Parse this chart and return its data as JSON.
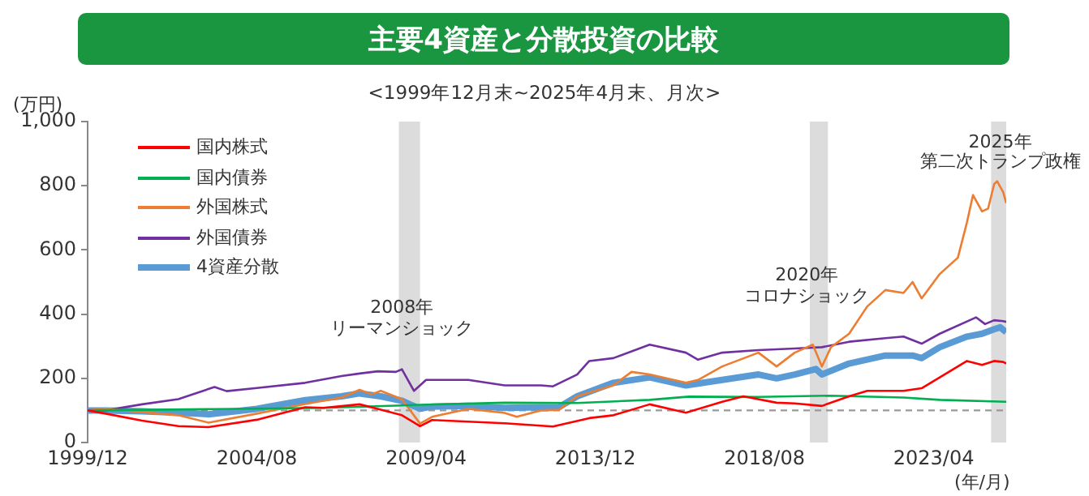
{
  "chart_data": {
    "type": "line",
    "title": "主要4資産と分散投資の比較",
    "subtitle": "<1999年12月末~2025年4月末、月次>",
    "ylabel": "(万円)",
    "xlabel": "(年/月)",
    "xlim": [
      "1999-12",
      "2025-04"
    ],
    "xticks": [
      {
        "value": "1999-12",
        "label": "1999/12"
      },
      {
        "value": "2004-08",
        "label": "2004/08"
      },
      {
        "value": "2009-04",
        "label": "2009/04"
      },
      {
        "value": "2013-12",
        "label": "2013/12"
      },
      {
        "value": "2018-08",
        "label": "2018/08"
      },
      {
        "value": "2023-04",
        "label": "2023/04"
      }
    ],
    "ylim": [
      0,
      1000
    ],
    "yticks": [
      0,
      200,
      400,
      600,
      800,
      {
        "value": 1000,
        "label": "1,000"
      }
    ],
    "grid": false,
    "legend": "top left",
    "series": [
      {
        "name": "国内株式",
        "color": "#ff0000",
        "x": [
          "1999-12",
          "2000-06",
          "2001-06",
          "2002-06",
          "2003-04",
          "2004-08",
          "2005-12",
          "2006-06",
          "2007-06",
          "2007-12",
          "2008-08",
          "2009-02",
          "2009-06",
          "2010-06",
          "2011-06",
          "2012-10",
          "2013-10",
          "2014-06",
          "2015-06",
          "2016-06",
          "2017-06",
          "2018-01",
          "2018-12",
          "2019-06",
          "2020-03",
          "2020-12",
          "2021-06",
          "2022-06",
          "2022-12",
          "2023-06",
          "2024-03",
          "2024-08",
          "2024-12",
          "2025-03",
          "2025-04"
        ],
        "values": [
          100,
          90,
          68,
          51,
          48,
          71,
          110,
          108,
          119,
          105,
          85,
          51,
          70,
          65,
          60,
          50,
          76,
          85,
          119,
          93,
          127,
          144,
          124,
          122,
          114,
          144,
          161,
          161,
          169,
          203,
          254,
          242,
          254,
          251,
          246
        ]
      },
      {
        "name": "国内債券",
        "color": "#00b050",
        "x": [
          "1999-12",
          "2003-06",
          "2006-06",
          "2008-06",
          "2009-04",
          "2011-06",
          "2013-06",
          "2015-06",
          "2016-07",
          "2018-06",
          "2020-06",
          "2022-06",
          "2023-06",
          "2025-04"
        ],
        "values": [
          100,
          104,
          108,
          115,
          118,
          124,
          123,
          133,
          143,
          142,
          146,
          140,
          133,
          127
        ]
      },
      {
        "name": "外国株式",
        "color": "#ed7d31",
        "x": [
          "1999-12",
          "2000-06",
          "2001-06",
          "2002-06",
          "2003-04",
          "2004-08",
          "2005-12",
          "2006-12",
          "2007-06",
          "2007-10",
          "2008-01",
          "2008-08",
          "2009-02",
          "2009-06",
          "2010-06",
          "2011-06",
          "2011-10",
          "2012-06",
          "2012-12",
          "2013-06",
          "2014-06",
          "2014-12",
          "2015-06",
          "2016-06",
          "2016-10",
          "2017-06",
          "2018-06",
          "2018-12",
          "2019-06",
          "2019-12",
          "2020-03",
          "2020-06",
          "2020-12",
          "2021-06",
          "2021-12",
          "2022-06",
          "2022-09",
          "2022-12",
          "2023-06",
          "2023-12",
          "2024-03",
          "2024-05",
          "2024-08",
          "2024-10",
          "2024-12",
          "2025-01",
          "2025-03",
          "2025-04"
        ],
        "values": [
          100,
          105,
          95,
          85,
          62,
          90,
          120,
          140,
          164,
          150,
          161,
          135,
          59,
          80,
          105,
          92,
          80,
          100,
          102,
          144,
          178,
          220,
          212,
          186,
          195,
          237,
          280,
          237,
          280,
          305,
          237,
          297,
          339,
          424,
          475,
          466,
          500,
          449,
          525,
          576,
          686,
          771,
          720,
          729,
          805,
          814,
          780,
          746
        ]
      },
      {
        "name": "外国債券",
        "color": "#7030a0",
        "x": [
          "1999-12",
          "2000-06",
          "2001-06",
          "2002-06",
          "2003-06",
          "2003-10",
          "2004-08",
          "2005-12",
          "2006-12",
          "2007-06",
          "2007-12",
          "2008-06",
          "2008-08",
          "2008-12",
          "2009-04",
          "2010-06",
          "2011-06",
          "2012-06",
          "2012-10",
          "2013-06",
          "2013-10",
          "2014-06",
          "2015-06",
          "2016-06",
          "2016-10",
          "2017-06",
          "2018-06",
          "2019-06",
          "2020-03",
          "2020-12",
          "2021-12",
          "2022-06",
          "2022-12",
          "2023-06",
          "2024-06",
          "2024-09",
          "2024-12",
          "2025-03",
          "2025-04"
        ],
        "values": [
          100,
          100,
          119,
          135,
          173,
          160,
          170,
          186,
          207,
          215,
          222,
          220,
          228,
          161,
          195,
          195,
          178,
          178,
          175,
          212,
          254,
          263,
          305,
          280,
          258,
          280,
          288,
          293,
          297,
          314,
          325,
          330,
          308,
          339,
          390,
          369,
          381,
          378,
          376
        ]
      },
      {
        "name": "4資産分散",
        "color": "#5b9bd5",
        "x": [
          "1999-12",
          "2000-06",
          "2001-06",
          "2002-06",
          "2003-04",
          "2004-08",
          "2005-12",
          "2006-12",
          "2007-06",
          "2008-01",
          "2008-08",
          "2009-02",
          "2009-06",
          "2010-06",
          "2011-06",
          "2012-06",
          "2012-12",
          "2013-06",
          "2014-06",
          "2015-06",
          "2016-06",
          "2017-06",
          "2018-06",
          "2018-12",
          "2019-06",
          "2020-01",
          "2020-03",
          "2020-12",
          "2021-12",
          "2022-09",
          "2022-12",
          "2023-06",
          "2024-03",
          "2024-08",
          "2024-12",
          "2025-02",
          "2025-04"
        ],
        "values": [
          100,
          100,
          97,
          93,
          88,
          105,
          132,
          144,
          153,
          144,
          130,
          105,
          112,
          114,
          108,
          110,
          110,
          144,
          186,
          203,
          178,
          195,
          212,
          200,
          212,
          229,
          212,
          246,
          271,
          271,
          263,
          297,
          330,
          339,
          353,
          359,
          344
        ]
      }
    ],
    "ref_lines": [
      {
        "axis": "y",
        "value": 100,
        "color": "#999999",
        "line_style": "dashed"
      }
    ],
    "bands": [
      {
        "axis": "x",
        "from": "2008-07",
        "to": "2009-02",
        "color": "#dcdcdc"
      },
      {
        "axis": "x",
        "from": "2019-11",
        "to": "2020-05",
        "color": "#dcdcdc"
      },
      {
        "axis": "x",
        "from": "2024-11",
        "to": "2025-04",
        "color": "#dcdcdc"
      }
    ],
    "annotations": [
      {
        "text": "2008年",
        "x": "2008-08",
        "y": 419
      },
      {
        "text": "リーマンショック",
        "x": "2008-08",
        "y": 354
      },
      {
        "text": "2020年",
        "x": "2019-10",
        "y": 520
      },
      {
        "text": "コロナショック",
        "x": "2019-10",
        "y": 455
      },
      {
        "text": "2025年",
        "x": "2025-02",
        "y": 934
      },
      {
        "text": "第二次トランプ政権",
        "x": "2025-02",
        "y": 874
      }
    ]
  }
}
